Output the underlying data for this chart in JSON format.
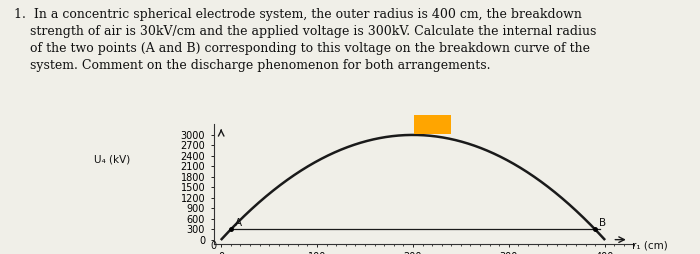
{
  "ylabel": "U₄ (kV)",
  "xlabel": "r₁ (cm)",
  "r2": 400,
  "E0": 30,
  "yticks": [
    0,
    300,
    600,
    900,
    1200,
    1500,
    1800,
    2100,
    2400,
    2700,
    3000
  ],
  "xticks": [
    0,
    100,
    200,
    300,
    400
  ],
  "U_line": 300,
  "curve_color": "#1a1a1a",
  "line_color": "#1a1a1a",
  "bg_color": "#f0efe8",
  "text_color": "#111111",
  "problem_text_line1": "1.  In a concentric spherical electrode system, the outer radius is 400 cm, the breakdown",
  "problem_text_line2": "    strength of air is 30kV/cm and the applied voltage is 300kV. Calculate the internal radius",
  "problem_text_line3": "    of the two points (A and B) corresponding to this voltage on the breakdown curve of the",
  "problem_text_line4": "    system. Comment on the discharge phenomenon for both arrangements.",
  "highlight_color": "#FFA500",
  "title_fontsize": 9.0,
  "axis_label_fontsize": 7.5,
  "tick_fontsize": 7.0
}
